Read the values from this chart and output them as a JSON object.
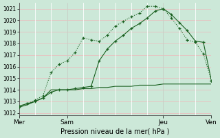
{
  "xlabel": "Pression niveau de la mer( hPa )",
  "bg_color": "#cce8d8",
  "grid_color_h": "#e8c0c0",
  "grid_color_v": "#ffffff",
  "line_color": "#1a6020",
  "ylim": [
    1011.8,
    1021.5
  ],
  "yticks": [
    1012,
    1013,
    1014,
    1015,
    1016,
    1017,
    1018,
    1019,
    1020,
    1021
  ],
  "xlim": [
    0,
    12
  ],
  "day_positions": [
    0,
    3,
    9,
    12
  ],
  "day_labels": [
    "Mer",
    "Sam",
    "Jeu",
    "Ven"
  ],
  "s1_x": [
    0,
    0.5,
    1,
    1.5,
    2,
    2.5,
    3,
    3.5,
    4,
    4.5,
    5,
    5.5,
    6,
    6.5,
    7,
    7.5,
    8,
    8.5,
    9,
    9.5,
    10,
    10.5,
    11,
    11.5,
    12
  ],
  "s1_y": [
    1012.5,
    1012.8,
    1013.1,
    1013.5,
    1015.5,
    1016.2,
    1016.5,
    1017.2,
    1018.5,
    1018.3,
    1018.2,
    1018.7,
    1019.5,
    1019.9,
    1020.3,
    1020.6,
    1021.2,
    1021.2,
    1021.0,
    1020.2,
    1019.3,
    1018.3,
    1018.1,
    1017.1,
    1014.8
  ],
  "s2_x": [
    0,
    0.5,
    1,
    1.5,
    2,
    2.5,
    3,
    3.5,
    4,
    4.5,
    5,
    5.5,
    6,
    6.5,
    7,
    7.5,
    8,
    8.5,
    9,
    9.5,
    10,
    10.5,
    11,
    11.5,
    12
  ],
  "s2_y": [
    1012.6,
    1012.8,
    1013.0,
    1013.3,
    1013.8,
    1014.0,
    1014.0,
    1014.1,
    1014.2,
    1014.3,
    1016.5,
    1017.5,
    1018.2,
    1018.7,
    1019.3,
    1019.7,
    1020.2,
    1020.8,
    1021.0,
    1020.5,
    1019.8,
    1019.1,
    1018.2,
    1018.1,
    1014.8
  ],
  "s3_x": [
    0,
    0.5,
    1,
    1.5,
    2,
    2.5,
    3,
    3.5,
    4,
    4.5,
    5,
    5.5,
    6,
    6.5,
    7,
    7.5,
    8,
    8.5,
    9,
    9.5,
    10,
    10.5,
    11,
    11.5,
    12
  ],
  "s3_y": [
    1012.5,
    1012.7,
    1013.0,
    1013.3,
    1014.0,
    1014.0,
    1014.0,
    1014.0,
    1014.1,
    1014.1,
    1014.2,
    1014.2,
    1014.3,
    1014.3,
    1014.3,
    1014.4,
    1014.4,
    1014.4,
    1014.5,
    1014.5,
    1014.5,
    1014.5,
    1014.5,
    1014.5,
    1014.5
  ]
}
